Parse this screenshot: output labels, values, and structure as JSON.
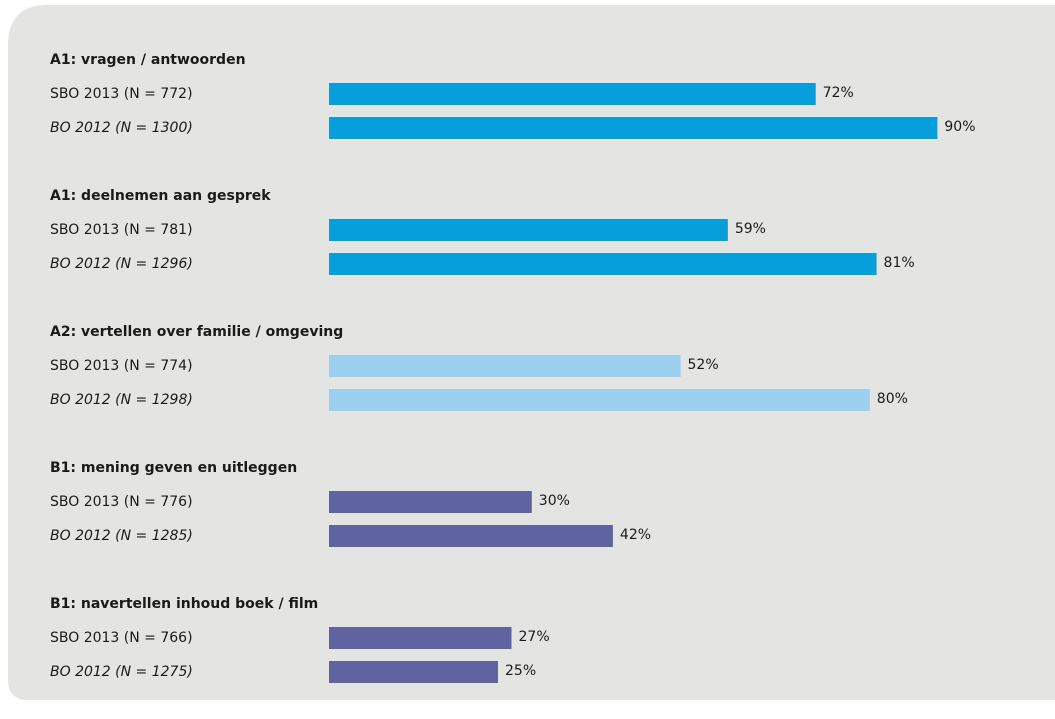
{
  "chart_data": {
    "type": "hbar",
    "xlim": [
      0,
      100
    ],
    "groups": [
      {
        "title": "A1: vragen / antwoorden",
        "color": "#069fdc",
        "categories": [
          "SBO 2013 (N = 772)",
          "BO 2012 (N = 1300)"
        ],
        "values": [
          72,
          90
        ],
        "value_labels": [
          "72%",
          "90%"
        ]
      },
      {
        "title": "A1: deelnemen aan gesprek",
        "color": "#069fdc",
        "categories": [
          "SBO 2013 (N = 781)",
          "BO 2012 (N = 1296)"
        ],
        "values": [
          59,
          81
        ],
        "value_labels": [
          "59%",
          "81%"
        ]
      },
      {
        "title": "A2: vertellen over familie / omgeving",
        "color": "#9dcfee",
        "categories": [
          "SBO 2013 (N = 774)",
          "BO 2012 (N = 1298)"
        ],
        "values": [
          52,
          80
        ],
        "value_labels": [
          "52%",
          "80%"
        ]
      },
      {
        "title": "B1: mening geven en uitleggen",
        "color": "#5f64a0",
        "categories": [
          "SBO 2013 (N = 776)",
          "BO 2012 (N = 1285)"
        ],
        "values": [
          30,
          42
        ],
        "value_labels": [
          "30%",
          "42%"
        ]
      },
      {
        "title": "B1: navertellen inhoud boek / film",
        "color": "#5f64a0",
        "categories": [
          "SBO 2013 (N = 766)",
          "BO 2012 (N = 1275)"
        ],
        "values": [
          27,
          25
        ],
        "value_labels": [
          "27%",
          "25%"
        ]
      }
    ]
  }
}
